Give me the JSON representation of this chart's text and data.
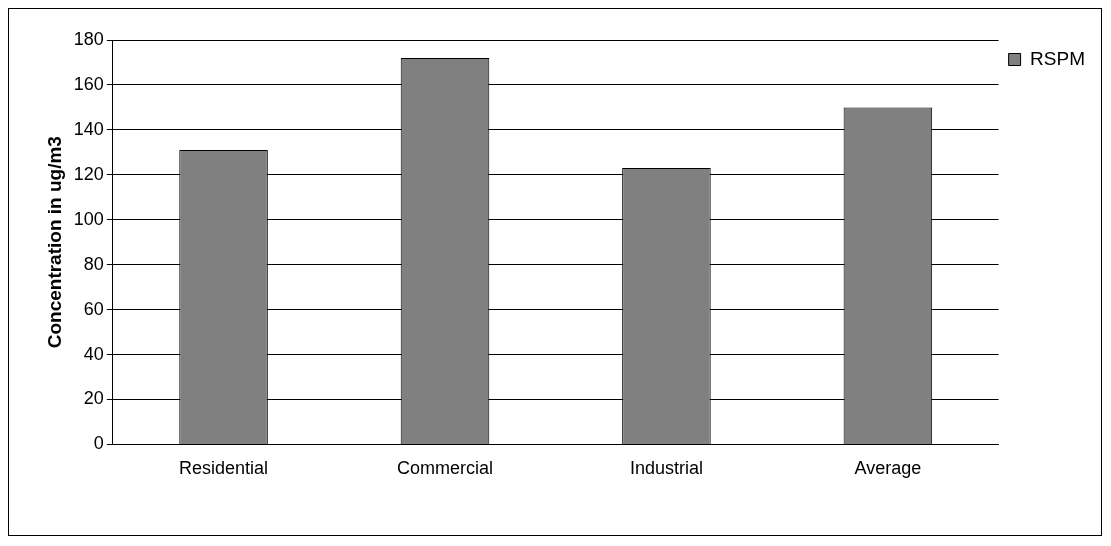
{
  "chart_data": {
    "type": "bar",
    "ylabel": "Concentration in ug/m3",
    "categories": [
      "Residential",
      "Commercial",
      "Industrial",
      "Average"
    ],
    "series": [
      {
        "name": "RSPM",
        "color": "#808080",
        "values": [
          131,
          172,
          123,
          150
        ]
      }
    ],
    "ylim": [
      0,
      180
    ],
    "yticks": [
      0,
      20,
      40,
      60,
      80,
      100,
      120,
      140,
      160,
      180
    ],
    "grid": "y",
    "legend": "top right"
  }
}
